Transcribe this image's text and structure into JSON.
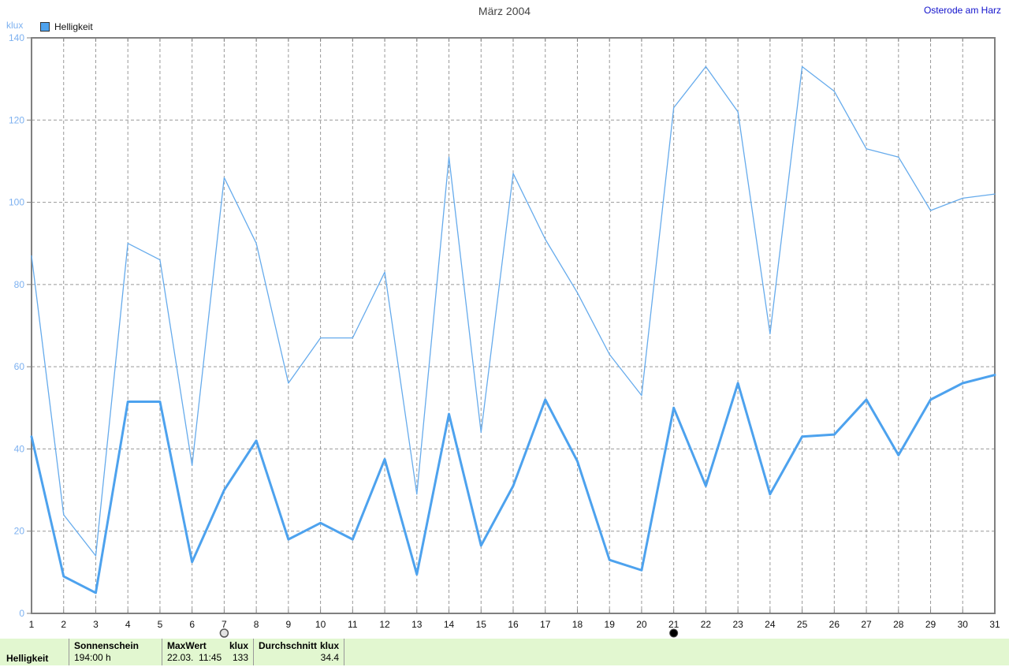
{
  "header": {
    "title": "März 2004",
    "station_link": "Osterode am Harz"
  },
  "legend": {
    "series_label": "Helligkeit"
  },
  "y_axis": {
    "unit": "klux"
  },
  "colors": {
    "series_blue": "#4da2ee",
    "series_blue_light": "#66abec",
    "axis_label_blue": "#7db1f0",
    "link_blue": "#1111cc",
    "table_green": "#e2f7d0"
  },
  "chart_data": {
    "type": "line",
    "title": "März 2004",
    "ylabel": "klux",
    "xlabel": "",
    "ylim": [
      0,
      140
    ],
    "y_tick_step": 20,
    "grid": true,
    "legend_position": "top-left",
    "x": [
      1,
      2,
      3,
      4,
      5,
      6,
      7,
      8,
      9,
      10,
      11,
      12,
      13,
      14,
      15,
      16,
      17,
      18,
      19,
      20,
      21,
      22,
      23,
      24,
      25,
      26,
      27,
      28,
      29,
      30,
      31
    ],
    "series": [
      {
        "name": "Helligkeit MaxWert (klux)",
        "color": "#66abec",
        "width": 1.3,
        "values": [
          87,
          24,
          14,
          90,
          86,
          36,
          106,
          90,
          56,
          67,
          67,
          83,
          29,
          111,
          44,
          107,
          91,
          78,
          63,
          53,
          123,
          133,
          122,
          68,
          133,
          127,
          113,
          111,
          98,
          101,
          102
        ]
      },
      {
        "name": "Helligkeit Durchschnitt (klux)",
        "color": "#4da2ee",
        "width": 3,
        "values": [
          43,
          9,
          5,
          51.5,
          51.5,
          12.5,
          30,
          42,
          18,
          22,
          18,
          37.5,
          9.5,
          48.5,
          16.5,
          31,
          52,
          37,
          13,
          10.5,
          50,
          31,
          56,
          29,
          43,
          43.5,
          52,
          38.5,
          52,
          56,
          58
        ]
      }
    ],
    "annotations": [
      {
        "x": 7,
        "symbol": "full-moon",
        "style": "open"
      },
      {
        "x": 21,
        "symbol": "new-moon",
        "style": "filled"
      }
    ]
  },
  "summary_table": {
    "row_label": "Helligkeit",
    "sunshine": {
      "header": "Sonnenschein",
      "value": "194:00 h"
    },
    "max": {
      "header": "MaxWert",
      "unit": "klux",
      "date": "22.03.",
      "time": "11:45",
      "value": "133"
    },
    "average": {
      "header": "Durchschnitt",
      "unit": "klux",
      "value": "34.4"
    }
  }
}
